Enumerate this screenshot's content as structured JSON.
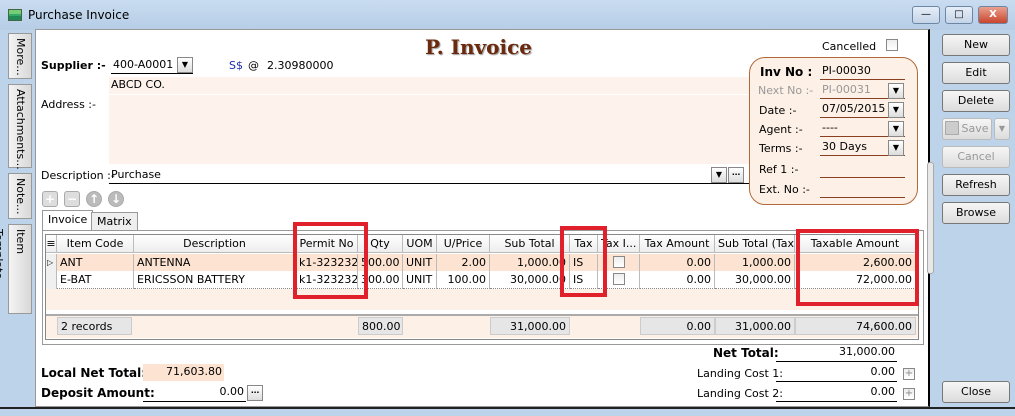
{
  "window": {
    "title": "Purchase Invoice"
  },
  "side_tabs": [
    "More...",
    "Attachments...",
    "Note...",
    "Item Template..."
  ],
  "header": {
    "title": "P. Invoice",
    "cancelled_label": "Cancelled",
    "cancelled": false
  },
  "supplier": {
    "label": "Supplier :-",
    "code": "400-A0001",
    "currency": "S$",
    "at": "@",
    "rate": "2.30980000",
    "name": "ABCD CO."
  },
  "address": {
    "label": "Address :-",
    "value": ""
  },
  "description": {
    "label": "Description :-",
    "value": "Purchase"
  },
  "info": {
    "inv_no_label": "Inv No :",
    "inv_no": "PI-00030",
    "next_no_label": "Next No :-",
    "next_no": "PI-00031",
    "date_label": "Date :-",
    "date": "07/05/2015",
    "agent_label": "Agent :-",
    "agent": "----",
    "terms_label": "Terms :-",
    "terms": "30 Days",
    "ref1_label": "Ref 1 :-",
    "ref1": "",
    "ext_no_label": "Ext. No :-",
    "ext_no": ""
  },
  "buttons": {
    "new": "New",
    "edit": "Edit",
    "delete": "Delete",
    "save": "Save",
    "cancel": "Cancel",
    "refresh": "Refresh",
    "browse": "Browse",
    "close": "Close"
  },
  "tabs": [
    "Invoice",
    "Matrix"
  ],
  "grid": {
    "columns": [
      "Item Code",
      "Description",
      "Permit No",
      "Qty",
      "UOM",
      "U/Price",
      "Sub Total",
      "Tax",
      "Tax I...",
      "Tax Amount",
      "Sub Total (Tax)",
      "Taxable Amount"
    ],
    "rows": [
      {
        "item_code": "ANT",
        "description": "ANTENNA",
        "permit_no": "k1-323232",
        "qty": "500.00",
        "uom": "UNIT",
        "uprice": "2.00",
        "sub_total": "1,000.00",
        "tax": "IS",
        "tax_inclusive": false,
        "tax_amount": "0.00",
        "sub_total_tax": "1,000.00",
        "taxable_amount": "2,600.00"
      },
      {
        "item_code": "E-BAT",
        "description": "ERICSSON BATTERY",
        "permit_no": "k1-323232",
        "qty": "300.00",
        "uom": "UNIT",
        "uprice": "100.00",
        "sub_total": "30,000.00",
        "tax": "IS",
        "tax_inclusive": false,
        "tax_amount": "0.00",
        "sub_total_tax": "30,000.00",
        "taxable_amount": "72,000.00"
      }
    ],
    "footer": {
      "records": "2 records",
      "qty": "800.00",
      "sub_total": "31,000.00",
      "tax_amount": "0.00",
      "sub_total_tax": "31,000.00",
      "taxable_amount": "74,600.00"
    }
  },
  "totals": {
    "local_net_total_label": "Local Net Total:",
    "local_net_total": "71,603.80",
    "deposit_label": "Deposit Amount:",
    "deposit": "0.00",
    "net_total_label": "Net Total:",
    "net_total": "31,000.00",
    "landing1_label": "Landing Cost 1:",
    "landing1": "0.00",
    "landing2_label": "Landing Cost 2:",
    "landing2": "0.00"
  },
  "colors": {
    "title": "#6b2a0e",
    "highlight": "#e0202a",
    "row_selected": "#fde4d2"
  }
}
